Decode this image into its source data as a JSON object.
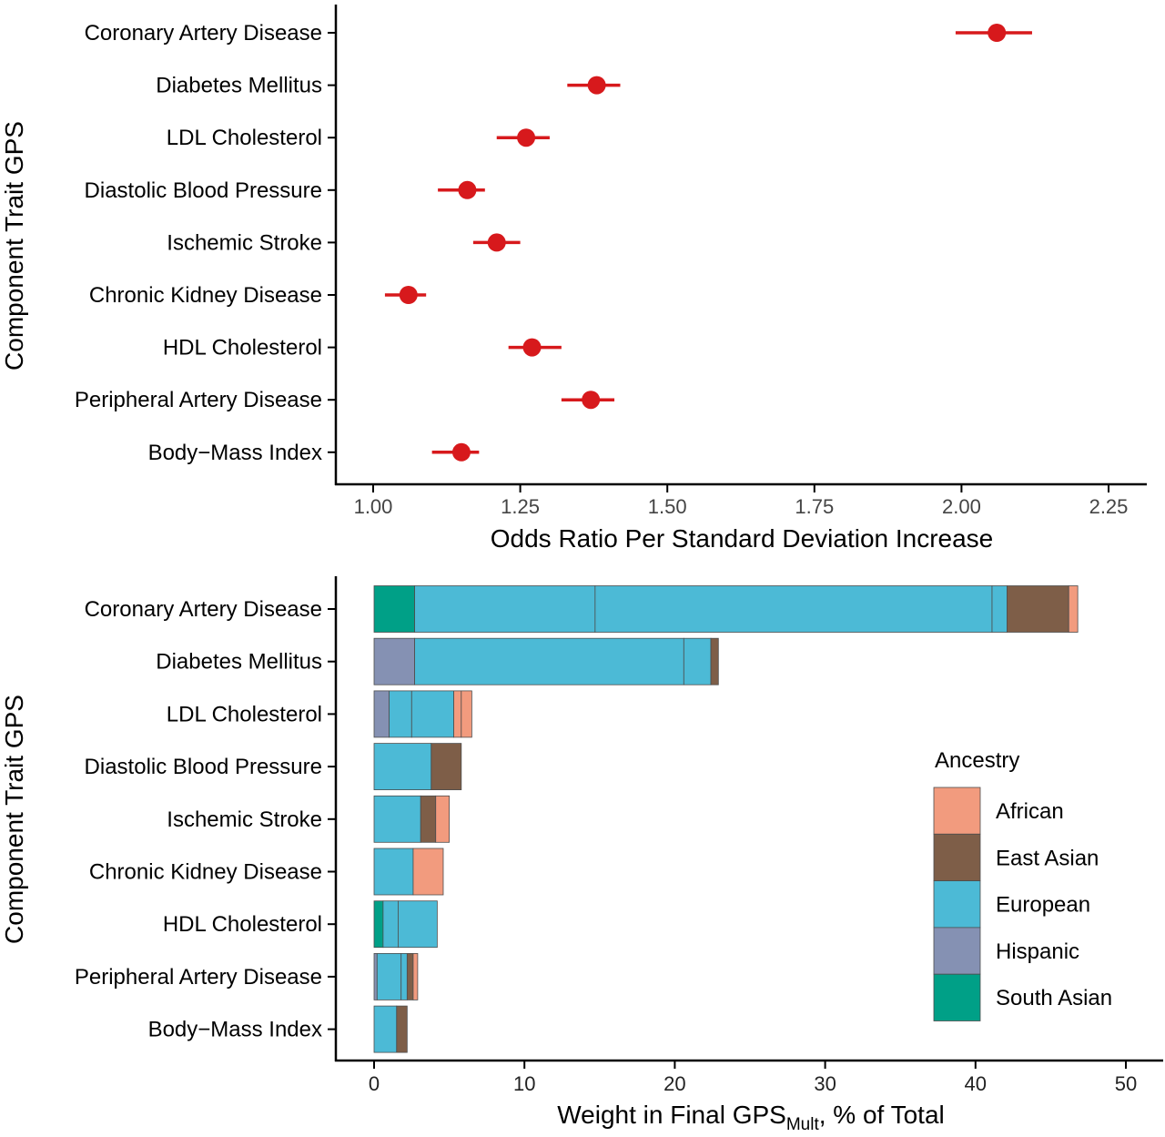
{
  "chart_data": [
    {
      "type": "scatter",
      "ylabel": "Component Trait GPS",
      "xlabel": "Odds Ratio Per Standard Deviation Increase",
      "xlim": [
        1.0,
        2.25
      ],
      "xticks": [
        1.0,
        1.25,
        1.5,
        1.75,
        2.0,
        2.25
      ],
      "xtick_labels": [
        "1.00",
        "1.25",
        "1.50",
        "1.75",
        "2.00",
        "2.25"
      ],
      "grid": false,
      "point_color": "#d7191c",
      "categories": [
        "Coronary Artery Disease",
        "Diabetes Mellitus",
        "LDL Cholesterol",
        "Diastolic Blood Pressure",
        "Ischemic Stroke",
        "Chronic Kidney Disease",
        "HDL Cholesterol",
        "Peripheral Artery Disease",
        "Body−Mass Index"
      ],
      "points": [
        {
          "or": 2.06,
          "lo": 1.99,
          "hi": 2.12
        },
        {
          "or": 1.38,
          "lo": 1.33,
          "hi": 1.42
        },
        {
          "or": 1.26,
          "lo": 1.21,
          "hi": 1.3
        },
        {
          "or": 1.16,
          "lo": 1.11,
          "hi": 1.19
        },
        {
          "or": 1.21,
          "lo": 1.17,
          "hi": 1.25
        },
        {
          "or": 1.06,
          "lo": 1.02,
          "hi": 1.09
        },
        {
          "or": 1.27,
          "lo": 1.23,
          "hi": 1.32
        },
        {
          "or": 1.37,
          "lo": 1.32,
          "hi": 1.41
        },
        {
          "or": 1.15,
          "lo": 1.1,
          "hi": 1.18
        }
      ]
    },
    {
      "type": "bar",
      "orientation": "horizontal",
      "stacked": true,
      "ylabel": "Component Trait GPS",
      "xlabel_main": "Weight in Final GPS",
      "xlabel_sub": "Mult",
      "xlabel_suffix": ", % of Total",
      "xlim": [
        0,
        50
      ],
      "xticks": [
        0,
        10,
        20,
        30,
        40,
        50
      ],
      "xtick_labels": [
        "0",
        "10",
        "20",
        "30",
        "40",
        "50"
      ],
      "grid": false,
      "legend": {
        "title": "Ancestry",
        "position": "right",
        "entries": [
          "African",
          "East Asian",
          "European",
          "Hispanic",
          "South Asian"
        ]
      },
      "colors": {
        "African": "#f29b7e",
        "East Asian": "#7e5e48",
        "European": "#4cbad6",
        "Hispanic": "#8591b3",
        "South Asian": "#00a087"
      },
      "categories": [
        "Coronary Artery Disease",
        "Diabetes Mellitus",
        "LDL Cholesterol",
        "Diastolic Blood Pressure",
        "Ischemic Stroke",
        "Chronic Kidney Disease",
        "HDL Cholesterol",
        "Peripheral Artery Disease",
        "Body−Mass Index"
      ],
      "segments": [
        [
          {
            "ancestry": "South Asian",
            "value": 2.7
          },
          {
            "ancestry": "European",
            "value": 12.0
          },
          {
            "ancestry": "European",
            "value": 26.4
          },
          {
            "ancestry": "European",
            "value": 1.0
          },
          {
            "ancestry": "East Asian",
            "value": 4.1
          },
          {
            "ancestry": "African",
            "value": 0.6
          }
        ],
        [
          {
            "ancestry": "Hispanic",
            "value": 2.7
          },
          {
            "ancestry": "European",
            "value": 17.9
          },
          {
            "ancestry": "European",
            "value": 1.8
          },
          {
            "ancestry": "East Asian",
            "value": 0.5
          }
        ],
        [
          {
            "ancestry": "Hispanic",
            "value": 1.0
          },
          {
            "ancestry": "European",
            "value": 1.5
          },
          {
            "ancestry": "European",
            "value": 2.8
          },
          {
            "ancestry": "African",
            "value": 0.5
          },
          {
            "ancestry": "African",
            "value": 0.7
          }
        ],
        [
          {
            "ancestry": "European",
            "value": 3.8
          },
          {
            "ancestry": "East Asian",
            "value": 2.0
          }
        ],
        [
          {
            "ancestry": "European",
            "value": 3.1
          },
          {
            "ancestry": "East Asian",
            "value": 1.0
          },
          {
            "ancestry": "African",
            "value": 0.9
          }
        ],
        [
          {
            "ancestry": "European",
            "value": 2.6
          },
          {
            "ancestry": "African",
            "value": 2.0
          }
        ],
        [
          {
            "ancestry": "South Asian",
            "value": 0.6
          },
          {
            "ancestry": "European",
            "value": 1.0
          },
          {
            "ancestry": "European",
            "value": 2.6
          }
        ],
        [
          {
            "ancestry": "Hispanic",
            "value": 0.2
          },
          {
            "ancestry": "European",
            "value": 1.6
          },
          {
            "ancestry": "European",
            "value": 0.4
          },
          {
            "ancestry": "East Asian",
            "value": 0.4
          },
          {
            "ancestry": "African",
            "value": 0.3
          }
        ],
        [
          {
            "ancestry": "European",
            "value": 1.5
          },
          {
            "ancestry": "East Asian",
            "value": 0.7
          }
        ]
      ]
    }
  ]
}
